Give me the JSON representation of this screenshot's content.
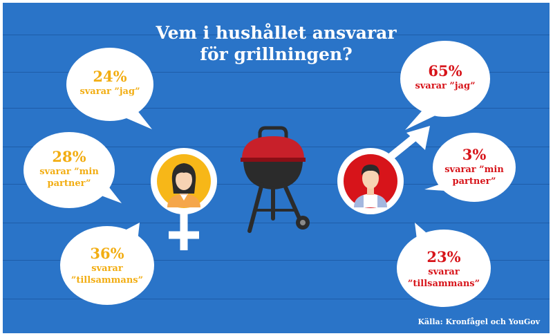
{
  "title_lines": [
    "Vem i hushållet ansvarar",
    "för grillningen?"
  ],
  "source": "Källa: Kronfågel och YouGov",
  "colors": {
    "background": "#2a74c8",
    "female_accent": "#f2ad12",
    "male_accent": "#d7141a",
    "bubble": "#ffffff",
    "grill_lid": "#c8202a",
    "grill_body": "#2b2b2b"
  },
  "icons": {
    "female": "venus-symbol-icon",
    "male": "mars-symbol-icon",
    "grill": "kettle-grill-icon",
    "woman": "woman-avatar-icon",
    "man": "man-avatar-icon"
  },
  "chart_data": {
    "type": "table",
    "title": "Vem i hushållet ansvarar för grillningen?",
    "source": "Källa: Kronfågel och YouGov",
    "series": [
      {
        "name": "female",
        "values": [
          {
            "pct": "24%",
            "value": 24,
            "label": "svarar ”jag”",
            "label_lines": [
              "svarar ”jag”"
            ]
          },
          {
            "pct": "28%",
            "value": 28,
            "label": "svarar ”min partner”",
            "label_lines": [
              "svarar ”min",
              "partner”"
            ]
          },
          {
            "pct": "36%",
            "value": 36,
            "label": "svarar ”tillsammans”",
            "label_lines": [
              "svarar",
              "”tillsammans”"
            ]
          }
        ]
      },
      {
        "name": "male",
        "values": [
          {
            "pct": "65%",
            "value": 65,
            "label": "svarar ”jag”",
            "label_lines": [
              "svarar ”jag”"
            ]
          },
          {
            "pct": "3%",
            "value": 3,
            "label": "svarar ”min partner”",
            "label_lines": [
              "svarar ”min",
              "partner”"
            ]
          },
          {
            "pct": "23%",
            "value": 23,
            "label": "svarar ”tillsammans”",
            "label_lines": [
              "svarar",
              "”tillsammans”"
            ]
          }
        ]
      }
    ]
  }
}
